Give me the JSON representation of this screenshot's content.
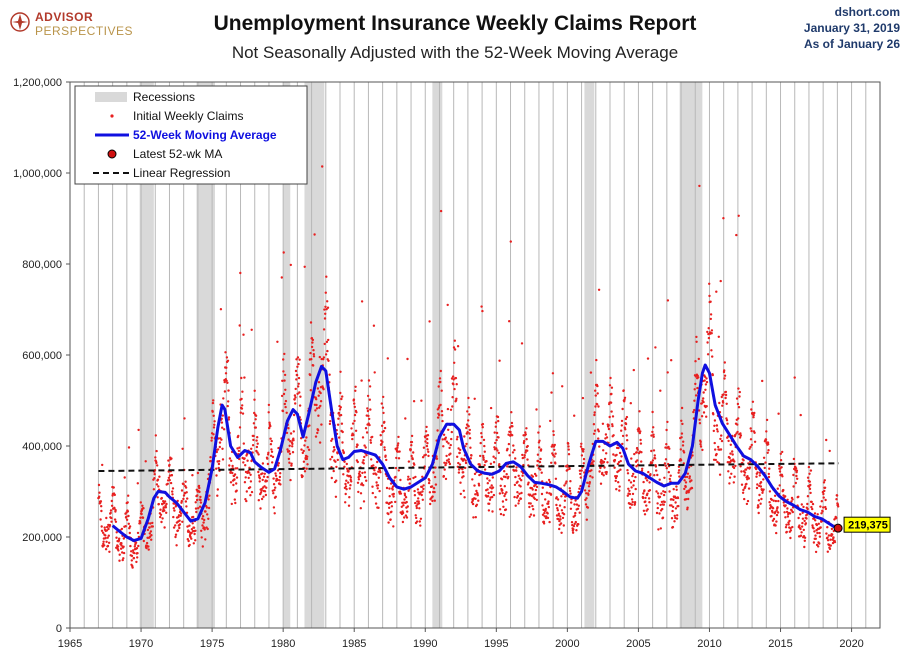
{
  "header": {
    "title": "Unemployment Insurance Weekly Claims Report",
    "subtitle": "Not Seasonally Adjusted with the 52-Week Moving Average",
    "logo_line1": "ADVISOR",
    "logo_line2": "PERSPECTIVES",
    "source": "dshort.com",
    "date": "January 31, 2019",
    "as_of": "As of January 26"
  },
  "colors": {
    "claims": "#e82020",
    "moving_average": "#1010e0",
    "recession": "#d9d9d9",
    "regression": "#111111",
    "callout": "#ffff00"
  },
  "chart_data": {
    "type": "scatter",
    "title": "Unemployment Insurance Weekly Claims Report",
    "subtitle": "Not Seasonally Adjusted with the 52-Week Moving Average",
    "xlim": [
      1965,
      2022
    ],
    "ylim": [
      0,
      1200000
    ],
    "x_ticks": [
      1965,
      1970,
      1975,
      1980,
      1985,
      1990,
      1995,
      2000,
      2005,
      2010,
      2015,
      2020
    ],
    "y_ticks": [
      0,
      200000,
      400000,
      600000,
      800000,
      1000000,
      1200000
    ],
    "y_tick_labels": [
      "0",
      "200,000",
      "400,000",
      "600,000",
      "800,000",
      "1,000,000",
      "1,200,000"
    ],
    "grid": "vertical",
    "legend_position": "top-left",
    "legend": [
      {
        "label": "Recessions",
        "kind": "band"
      },
      {
        "label": "Initial Weekly Claims",
        "kind": "dot"
      },
      {
        "label": "52-Week Moving Average",
        "kind": "line"
      },
      {
        "label": "Latest 52-wk MA",
        "kind": "marker"
      },
      {
        "label": "Linear Regression",
        "kind": "dashed"
      }
    ],
    "recessions": [
      [
        1969.9,
        1970.9
      ],
      [
        1973.9,
        1975.2
      ],
      [
        1980.0,
        1980.5
      ],
      [
        1981.5,
        1982.9
      ],
      [
        1990.5,
        1991.2
      ],
      [
        2001.2,
        2001.9
      ],
      [
        2007.9,
        2009.5
      ]
    ],
    "moving_average": [
      [
        1968.0,
        225000
      ],
      [
        1968.5,
        212000
      ],
      [
        1969.0,
        200000
      ],
      [
        1969.5,
        192000
      ],
      [
        1970.0,
        197000
      ],
      [
        1970.5,
        240000
      ],
      [
        1970.9,
        285000
      ],
      [
        1971.2,
        300000
      ],
      [
        1971.7,
        298000
      ],
      [
        1972.0,
        288000
      ],
      [
        1972.5,
        275000
      ],
      [
        1973.0,
        255000
      ],
      [
        1973.5,
        235000
      ],
      [
        1974.0,
        240000
      ],
      [
        1974.5,
        275000
      ],
      [
        1975.0,
        350000
      ],
      [
        1975.4,
        440000
      ],
      [
        1975.7,
        490000
      ],
      [
        1975.9,
        480000
      ],
      [
        1976.3,
        400000
      ],
      [
        1976.8,
        375000
      ],
      [
        1977.3,
        390000
      ],
      [
        1977.7,
        385000
      ],
      [
        1978.0,
        365000
      ],
      [
        1978.5,
        352000
      ],
      [
        1979.0,
        342000
      ],
      [
        1979.4,
        350000
      ],
      [
        1979.8,
        390000
      ],
      [
        1980.3,
        455000
      ],
      [
        1980.7,
        480000
      ],
      [
        1981.0,
        470000
      ],
      [
        1981.4,
        420000
      ],
      [
        1981.8,
        470000
      ],
      [
        1982.3,
        540000
      ],
      [
        1982.7,
        575000
      ],
      [
        1983.0,
        565000
      ],
      [
        1983.4,
        480000
      ],
      [
        1983.8,
        400000
      ],
      [
        1984.2,
        370000
      ],
      [
        1984.6,
        375000
      ],
      [
        1985.0,
        388000
      ],
      [
        1985.5,
        390000
      ],
      [
        1986.0,
        385000
      ],
      [
        1986.5,
        380000
      ],
      [
        1987.0,
        360000
      ],
      [
        1987.5,
        330000
      ],
      [
        1988.0,
        310000
      ],
      [
        1988.5,
        305000
      ],
      [
        1989.0,
        310000
      ],
      [
        1989.5,
        320000
      ],
      [
        1990.0,
        330000
      ],
      [
        1990.5,
        360000
      ],
      [
        1991.0,
        420000
      ],
      [
        1991.5,
        448000
      ],
      [
        1992.0,
        448000
      ],
      [
        1992.4,
        435000
      ],
      [
        1992.7,
        395000
      ],
      [
        1993.2,
        360000
      ],
      [
        1993.7,
        345000
      ],
      [
        1994.2,
        340000
      ],
      [
        1994.7,
        338000
      ],
      [
        1995.2,
        345000
      ],
      [
        1995.7,
        362000
      ],
      [
        1996.2,
        365000
      ],
      [
        1996.7,
        355000
      ],
      [
        1997.2,
        335000
      ],
      [
        1997.7,
        320000
      ],
      [
        1998.2,
        318000
      ],
      [
        1998.7,
        315000
      ],
      [
        1999.2,
        310000
      ],
      [
        1999.7,
        300000
      ],
      [
        2000.2,
        288000
      ],
      [
        2000.7,
        285000
      ],
      [
        2001.0,
        300000
      ],
      [
        2001.5,
        360000
      ],
      [
        2002.0,
        410000
      ],
      [
        2002.5,
        410000
      ],
      [
        2003.0,
        400000
      ],
      [
        2003.5,
        408000
      ],
      [
        2003.9,
        395000
      ],
      [
        2004.3,
        360000
      ],
      [
        2004.8,
        345000
      ],
      [
        2005.3,
        340000
      ],
      [
        2005.8,
        330000
      ],
      [
        2006.3,
        320000
      ],
      [
        2006.8,
        312000
      ],
      [
        2007.3,
        318000
      ],
      [
        2007.8,
        318000
      ],
      [
        2008.3,
        340000
      ],
      [
        2008.8,
        400000
      ],
      [
        2009.2,
        500000
      ],
      [
        2009.5,
        560000
      ],
      [
        2009.7,
        578000
      ],
      [
        2010.0,
        560000
      ],
      [
        2010.4,
        490000
      ],
      [
        2010.9,
        450000
      ],
      [
        2011.4,
        425000
      ],
      [
        2011.9,
        400000
      ],
      [
        2012.4,
        378000
      ],
      [
        2012.9,
        370000
      ],
      [
        2013.4,
        355000
      ],
      [
        2013.9,
        335000
      ],
      [
        2014.4,
        310000
      ],
      [
        2014.9,
        290000
      ],
      [
        2015.4,
        278000
      ],
      [
        2015.9,
        270000
      ],
      [
        2016.4,
        260000
      ],
      [
        2016.9,
        255000
      ],
      [
        2017.4,
        245000
      ],
      [
        2017.9,
        240000
      ],
      [
        2018.4,
        230000
      ],
      [
        2018.8,
        222000
      ],
      [
        2019.05,
        219375
      ]
    ],
    "latest_ma": {
      "x": 2019.05,
      "y": 219375,
      "label": "219,375"
    },
    "regression": {
      "start": [
        1967.0,
        345000
      ],
      "end": [
        2019.1,
        362000
      ]
    },
    "claims_generation": {
      "start": 1967.0,
      "end": 2019.08,
      "per_year": 52
    }
  }
}
